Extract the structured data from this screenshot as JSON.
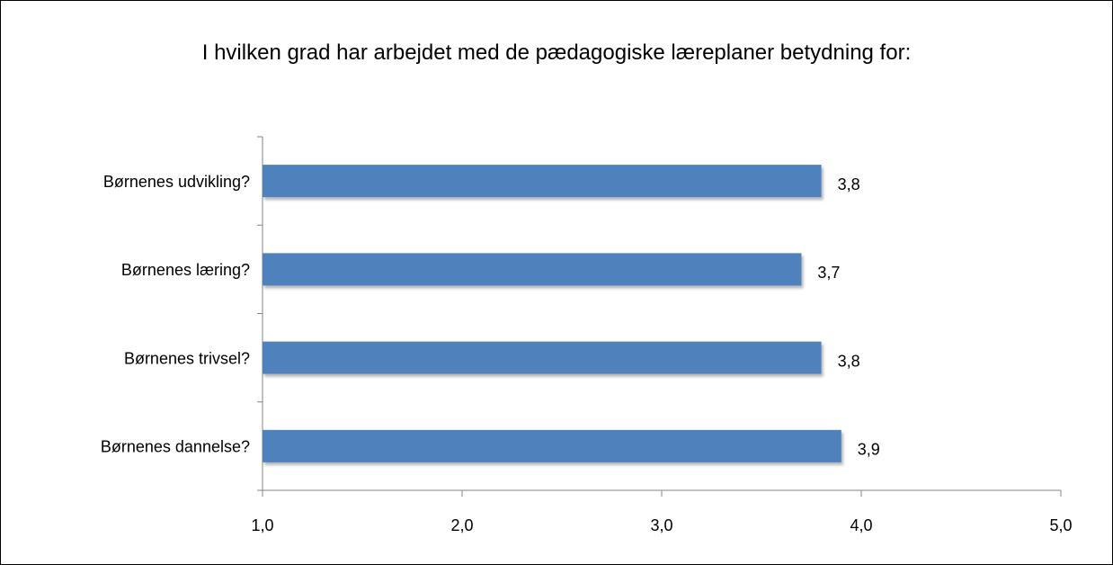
{
  "chart_data": {
    "type": "bar",
    "orientation": "horizontal",
    "title": "I hvilken grad har arbejdet med de pædagogiske læreplaner betydning for:",
    "categories": [
      "Børnenes udvikling?",
      "Børnenes læring?",
      "Børnenes trivsel?",
      "Børnenes dannelse?"
    ],
    "values": [
      3.8,
      3.7,
      3.8,
      3.9
    ],
    "value_labels": [
      "3,8",
      "3,7",
      "3,8",
      "3,9"
    ],
    "color": "#4f81bd",
    "xlim": [
      1,
      5
    ],
    "xticks": [
      {
        "value": 1,
        "label": "1,0"
      },
      {
        "value": 2,
        "label": "2,0"
      },
      {
        "value": 3,
        "label": "3,0"
      },
      {
        "value": 4,
        "label": "4,0"
      },
      {
        "value": 5,
        "label": "5,0"
      }
    ],
    "grid": false
  }
}
